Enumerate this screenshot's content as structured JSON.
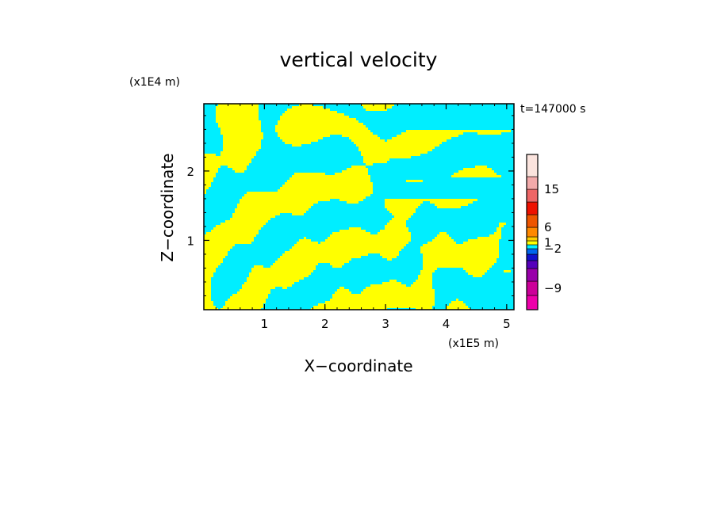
{
  "chart_data": {
    "type": "heatmap",
    "title": "vertical velocity",
    "xlabel": "X−coordinate",
    "ylabel": "Z−coordinate",
    "x_unit": "(x1E5 m)",
    "y_unit": "(x1E4 m)",
    "time_label": "t=147000 s",
    "xlim": [
      0,
      5.12
    ],
    "ylim": [
      0,
      2.97
    ],
    "x_ticks": [
      {
        "value": 1,
        "label": "1"
      },
      {
        "value": 2,
        "label": "2"
      },
      {
        "value": 3,
        "label": "3"
      },
      {
        "value": 4,
        "label": "4"
      },
      {
        "value": 5,
        "label": "5"
      }
    ],
    "y_ticks": [
      {
        "value": 1,
        "label": "1"
      },
      {
        "value": 2,
        "label": "2"
      }
    ],
    "field": {
      "positive_color": "#ffff00",
      "negative_color": "#00eeff",
      "description": "alternating updraft / downdraft bands"
    },
    "colorbar": {
      "levels": [
        {
          "color": "#ee00aa"
        },
        {
          "color": "#cc0099"
        },
        {
          "color": "#9900aa"
        },
        {
          "color": "#5500bb"
        },
        {
          "color": "#1111cc"
        },
        {
          "color": "#0066ee"
        },
        {
          "color": "#00eeff"
        },
        {
          "color": "#ffff00"
        },
        {
          "color": "#ffcc00"
        },
        {
          "color": "#ff8800"
        },
        {
          "color": "#ee5500"
        },
        {
          "color": "#ee1100"
        },
        {
          "color": "#ee6666"
        },
        {
          "color": "#f2aaaa"
        },
        {
          "color": "#fbe4de"
        }
      ],
      "labels": [
        {
          "text": "15",
          "level": 13
        },
        {
          "text": "6",
          "level": 10
        },
        {
          "text": "1",
          "level": 7.5
        },
        {
          "text": "−2",
          "level": 6
        },
        {
          "text": "−9",
          "level": 1.5
        }
      ]
    }
  }
}
